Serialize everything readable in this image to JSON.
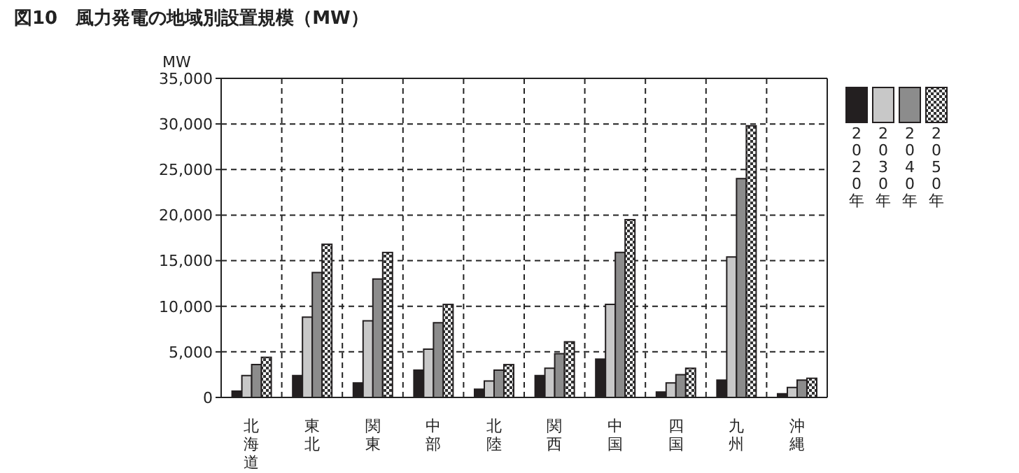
{
  "chart_data": {
    "type": "bar",
    "title": "図10　風力発電の地域別設置規模（MW）",
    "ylabel": "MW",
    "categories": [
      "北海道",
      "東北",
      "関東",
      "中部",
      "北陸",
      "関西",
      "中国",
      "四国",
      "九州",
      "沖縄"
    ],
    "series": [
      {
        "name": "2020年",
        "color": "#231f20",
        "values": [
          700,
          2400,
          1600,
          3000,
          900,
          2400,
          4200,
          600,
          1900,
          400
        ]
      },
      {
        "name": "2030年",
        "color": "#c8c8c8",
        "values": [
          2400,
          8800,
          8400,
          5300,
          1800,
          3200,
          10200,
          1600,
          15400,
          1100
        ]
      },
      {
        "name": "2040年",
        "color": "#8c8c8c",
        "values": [
          3600,
          13700,
          13000,
          8200,
          3000,
          4800,
          15900,
          2500,
          24000,
          1900
        ]
      },
      {
        "name": "2050年",
        "color": "#333333",
        "values": [
          4400,
          16800,
          15900,
          10200,
          3600,
          6100,
          19500,
          3200,
          29800,
          2100
        ]
      }
    ],
    "ylim": [
      0,
      35000
    ],
    "yticks": [
      {
        "value": 0,
        "label": "0"
      },
      {
        "value": 5000,
        "label": "5,000"
      },
      {
        "value": 10000,
        "label": "10,000"
      },
      {
        "value": 15000,
        "label": "15,000"
      },
      {
        "value": 20000,
        "label": "20,000"
      },
      {
        "value": 25000,
        "label": "25,000"
      },
      {
        "value": 30000,
        "label": "30,000"
      },
      {
        "value": 35000,
        "label": "35,000"
      }
    ],
    "grid": true,
    "legend": "right"
  }
}
